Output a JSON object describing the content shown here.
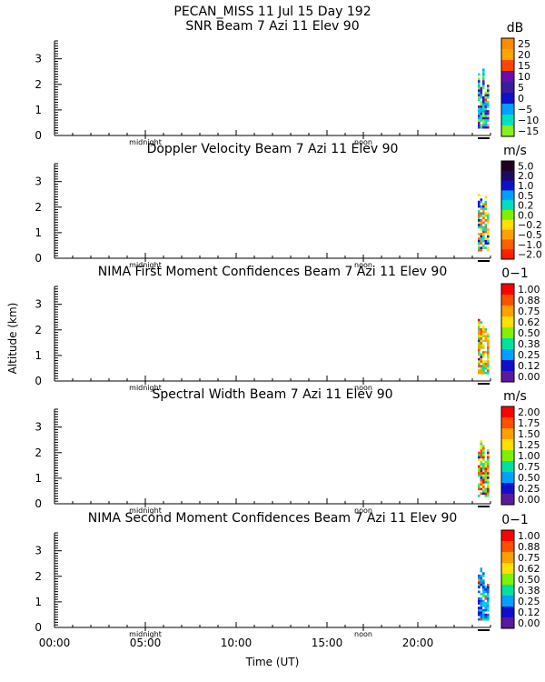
{
  "header": {
    "title": "PECAN_MISS  11 Jul 15 Day 192"
  },
  "axes": {
    "ylabel": "Altitude (km)",
    "xlabel": "Time (UT)",
    "x_ticks": [
      "00:00",
      "05:00",
      "10:00",
      "15:00",
      "20:00"
    ],
    "markers": [
      "midnight",
      "noon"
    ],
    "y_ticks": [
      "0",
      "1",
      "2",
      "3"
    ]
  },
  "chart_data": [
    {
      "type": "heatmap",
      "title": "SNR Beam 7 Azi  11 Elev 90",
      "unit": "dB",
      "colorbar_labels": [
        "25",
        "20",
        "15",
        "10",
        "5",
        "0",
        "−5",
        "−10",
        "−15"
      ],
      "colorbar_colors": [
        "#ff8c00",
        "#ffa500",
        "#ff4500",
        "#6a0dad",
        "#3a1d9a",
        "#1010cc",
        "#00a0ff",
        "#00e0c0",
        "#88f020"
      ],
      "xlim_hours": [
        0,
        24
      ],
      "ylim_km": [
        0,
        3.7
      ],
      "data_extent": {
        "t_start": 23.3,
        "t_end": 23.95,
        "alt_max": 2.8
      },
      "dominant_colors": [
        "#1a1ad0",
        "#00b0f0",
        "#00e0c0",
        "#88f020",
        "#6a0dad"
      ]
    },
    {
      "type": "heatmap",
      "title": "Doppler Velocity Beam 7 Azi  11 Elev 90",
      "unit": "m/s",
      "colorbar_labels": [
        "5.0",
        "2.0",
        "1.0",
        "0.5",
        "0.2",
        "0.0",
        "−0.2",
        "−0.5",
        "−1.0",
        "−2.0"
      ],
      "colorbar_colors": [
        "#200020",
        "#1a0a60",
        "#1010cc",
        "#00a0ff",
        "#00e0c0",
        "#80f000",
        "#ffe000",
        "#ffa000",
        "#ff6000",
        "#ff2000"
      ],
      "xlim_hours": [
        0,
        24
      ],
      "ylim_km": [
        0,
        3.7
      ],
      "data_extent": {
        "t_start": 23.3,
        "t_end": 23.95,
        "alt_max": 2.7
      },
      "dominant_colors": [
        "#ff6000",
        "#ffa000",
        "#00e0c0",
        "#1010cc",
        "#ffe000"
      ]
    },
    {
      "type": "heatmap",
      "title": "NIMA First Moment Confidences Beam 7 Azi  11 Elev 90",
      "unit": "0−1",
      "colorbar_labels": [
        "1.00",
        "0.88",
        "0.75",
        "0.62",
        "0.50",
        "0.38",
        "0.25",
        "0.12",
        "0.00"
      ],
      "colorbar_colors": [
        "#ff0000",
        "#ff5000",
        "#ffa000",
        "#ffe000",
        "#80f000",
        "#00e0a0",
        "#00a0ff",
        "#1010cc",
        "#5a1a9a"
      ],
      "xlim_hours": [
        0,
        24
      ],
      "ylim_km": [
        0,
        3.7
      ],
      "data_extent": {
        "t_start": 23.3,
        "t_end": 23.95,
        "alt_max": 2.7
      },
      "dominant_colors": [
        "#00e0a0",
        "#80f000",
        "#ffe000",
        "#ffa000",
        "#ff5000"
      ]
    },
    {
      "type": "heatmap",
      "title": "Spectral Width Beam 7 Azi  11 Elev 90",
      "unit": "m/s",
      "colorbar_labels": [
        "2.00",
        "1.75",
        "1.50",
        "1.25",
        "1.00",
        "0.75",
        "0.50",
        "0.25",
        "0.00"
      ],
      "colorbar_colors": [
        "#ff0000",
        "#ff5000",
        "#ffa000",
        "#ffe000",
        "#80f000",
        "#00e0a0",
        "#00a0ff",
        "#1010cc",
        "#5a1a9a"
      ],
      "xlim_hours": [
        0,
        24
      ],
      "ylim_km": [
        0,
        3.7
      ],
      "data_extent": {
        "t_start": 23.3,
        "t_end": 23.95,
        "alt_max": 2.75
      },
      "dominant_colors": [
        "#80f000",
        "#00e0a0",
        "#ffe000",
        "#ff5000",
        "#ff0000"
      ]
    },
    {
      "type": "heatmap",
      "title": "NIMA Second Moment Confidences Beam 7 Azi  11 Elev 90",
      "unit": "0−1",
      "colorbar_labels": [
        "1.00",
        "0.88",
        "0.75",
        "0.62",
        "0.50",
        "0.38",
        "0.25",
        "0.12",
        "0.00"
      ],
      "colorbar_colors": [
        "#ff0000",
        "#ff5000",
        "#ffa000",
        "#ffe000",
        "#80f000",
        "#00e0a0",
        "#00a0ff",
        "#1010cc",
        "#5a1a9a"
      ],
      "xlim_hours": [
        0,
        24
      ],
      "ylim_km": [
        0,
        3.7
      ],
      "data_extent": {
        "t_start": 23.3,
        "t_end": 23.95,
        "alt_max": 2.7
      },
      "dominant_colors": [
        "#00a0ff",
        "#1010cc",
        "#00e0a0",
        "#0060e0",
        "#00c0ff"
      ]
    }
  ]
}
